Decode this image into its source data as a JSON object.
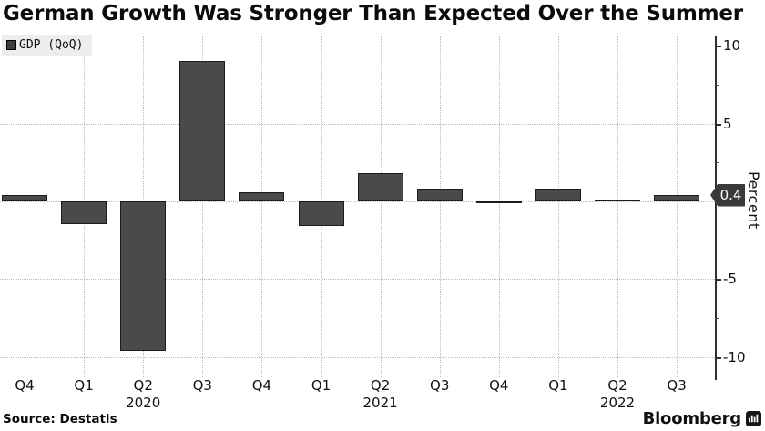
{
  "title": "German Growth Was Stronger Than Expected Over the Summer",
  "legend": {
    "label": "GDP (QoQ)"
  },
  "y_axis_label": "Percent",
  "axis_badge": {
    "label": "0.4"
  },
  "source": "Source:  Destatis",
  "brand": "Bloomberg",
  "colors": {
    "bar_fill": "#4a4a4a",
    "bar_border": "#1c1c1c",
    "grid": "#bdbdbd",
    "axis": "#2e2e2e",
    "legend_bg": "#ededed",
    "badge_bg": "#3a3a3a",
    "badge_text": "#ffffff"
  },
  "chart_data": {
    "type": "bar",
    "title": "German Growth Was Stronger Than Expected Over the Summer",
    "series_name": "GDP (QoQ)",
    "categories": [
      "Q4",
      "Q1",
      "Q2",
      "Q3",
      "Q4",
      "Q1",
      "Q2",
      "Q3",
      "Q4",
      "Q1",
      "Q2",
      "Q3"
    ],
    "year_markers": [
      {
        "index": 2,
        "label": "2020"
      },
      {
        "index": 6,
        "label": "2021"
      },
      {
        "index": 10,
        "label": "2022"
      }
    ],
    "values": [
      0.4,
      -1.5,
      -9.6,
      9.0,
      0.6,
      -1.6,
      1.8,
      0.8,
      0.0,
      0.8,
      0.1,
      0.4
    ],
    "xlabel": "",
    "ylabel": "Percent",
    "ylim": [
      -11.2,
      10.6
    ],
    "yticks_major": [
      10,
      5,
      0,
      -5,
      -10
    ],
    "ytick_labels": [
      "10",
      "5",
      "0",
      "-5",
      "-10"
    ],
    "yticks_minor": [
      7.5,
      2.5,
      -2.5,
      -7.5
    ],
    "grid": true,
    "legend_position": "top-left",
    "axis_side": "right",
    "last_value_label": "0.4"
  }
}
